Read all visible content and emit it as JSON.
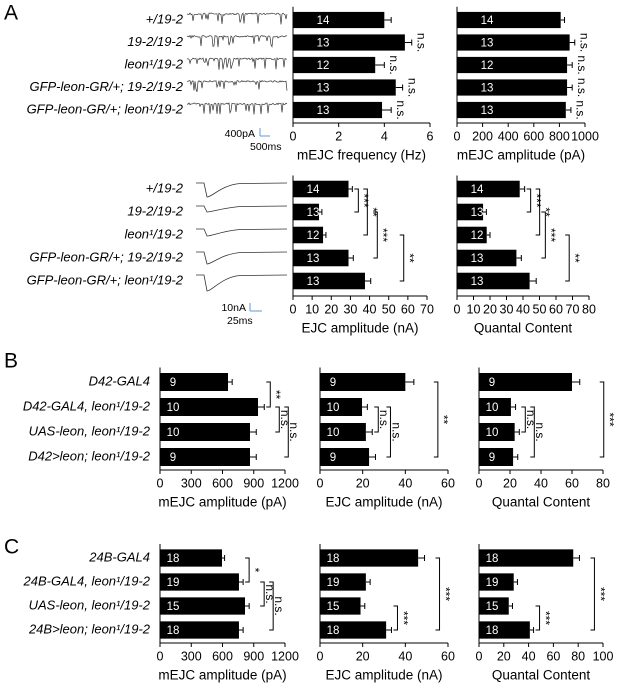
{
  "chart_data": [
    {
      "type": "bar",
      "orientation": "horizontal",
      "panel": "A",
      "categories": [
        "+/19-2",
        "19-2/19-2",
        "leon¹/19-2",
        "GFP-leon-GR/+; 19-2/19-2",
        "GFP-leon-GR/+; leon¹/19-2"
      ],
      "xlabel": "mEJC frequency (Hz)",
      "xlim": [
        0,
        6
      ],
      "xticks": [
        0,
        2,
        4,
        6
      ],
      "values": [
        4.0,
        4.9,
        3.6,
        4.5,
        3.9
      ],
      "errors": [
        0.3,
        0.3,
        0.4,
        0.3,
        0.4
      ],
      "sample_sizes": [
        14,
        13,
        12,
        13,
        13
      ],
      "annotations": [
        {
          "label": "n.s.",
          "rows": [
            1
          ]
        },
        {
          "label": "n.s.",
          "rows": [
            2
          ]
        },
        {
          "label": "n.s.",
          "rows": [
            3
          ]
        },
        {
          "label": "n.s.",
          "rows": [
            4
          ]
        }
      ]
    },
    {
      "type": "bar",
      "orientation": "horizontal",
      "xlabel": "mEJC amplitude (pA)",
      "xlim": [
        0,
        1000
      ],
      "xticks": [
        0,
        200,
        400,
        600,
        800,
        1000
      ],
      "values": [
        810,
        880,
        860,
        860,
        850
      ],
      "errors": [
        30,
        40,
        40,
        40,
        40
      ],
      "sample_sizes": [
        14,
        13,
        12,
        13,
        13
      ],
      "annotations": [
        {
          "label": "n.s.",
          "rows": [
            1
          ]
        },
        {
          "label": "n.s.",
          "rows": [
            2
          ]
        },
        {
          "label": "n.s.",
          "rows": [
            3
          ]
        },
        {
          "label": "n.s.",
          "rows": [
            4
          ]
        }
      ]
    },
    {
      "type": "bar",
      "orientation": "horizontal",
      "categories": [
        "+/19-2",
        "19-2/19-2",
        "leon¹/19-2",
        "GFP-leon-GR/+; 19-2/19-2",
        "GFP-leon-GR/+; leon¹/19-2"
      ],
      "xlabel": "EJC amplitude (nA)",
      "xlim": [
        0,
        70
      ],
      "xticks": [
        0,
        10,
        20,
        30,
        40,
        50,
        60,
        70
      ],
      "values": [
        29,
        13.6,
        15.7,
        29,
        37.6
      ],
      "errors": [
        2,
        1.5,
        1.5,
        2.5,
        3
      ],
      "sample_sizes": [
        14,
        13,
        12,
        13,
        13
      ],
      "annotations": [
        {
          "label": "***",
          "rows": [
            0,
            1
          ]
        },
        {
          "label": "**",
          "rows": [
            0,
            2
          ]
        },
        {
          "label": "***",
          "rows": [
            1,
            3
          ]
        },
        {
          "label": "**",
          "rows": [
            2,
            4
          ]
        }
      ]
    },
    {
      "type": "bar",
      "orientation": "horizontal",
      "xlabel": "Quantal Content",
      "xlim": [
        0,
        80
      ],
      "xticks": [
        0,
        10,
        20,
        30,
        40,
        50,
        60,
        70,
        80
      ],
      "values": [
        38,
        15.8,
        18,
        36,
        44
      ],
      "errors": [
        3,
        2,
        2,
        3,
        4
      ],
      "sample_sizes": [
        14,
        13,
        12,
        13,
        13
      ],
      "annotations": [
        {
          "label": "***",
          "rows": [
            0,
            1
          ]
        },
        {
          "label": "**",
          "rows": [
            0,
            2
          ]
        },
        {
          "label": "***",
          "rows": [
            1,
            3
          ]
        },
        {
          "label": "**",
          "rows": [
            2,
            4
          ]
        }
      ]
    },
    {
      "type": "bar",
      "orientation": "horizontal",
      "panel": "B",
      "categories": [
        "D42-GAL4",
        "D42-GAL4, leon¹/19-2",
        "UAS-leon, leon¹/19-2",
        "D42>leon; leon¹/19-2"
      ],
      "xlabel": "mEJC amplitude (pA)",
      "xlim": [
        0,
        1200
      ],
      "xticks": [
        0,
        300,
        600,
        900,
        1200
      ],
      "values": [
        653,
        941,
        864,
        864
      ],
      "errors": [
        40,
        60,
        60,
        60
      ],
      "sample_sizes": [
        9,
        10,
        10,
        9
      ],
      "annotations": [
        {
          "label": "**",
          "rows": [
            0,
            1
          ]
        },
        {
          "label": "n.s.",
          "rows": [
            1,
            2
          ]
        },
        {
          "label": "n.s.",
          "rows": [
            1,
            3
          ]
        }
      ]
    },
    {
      "type": "bar",
      "orientation": "horizontal",
      "xlabel": "EJC amplitude (nA)",
      "xlim": [
        0,
        60
      ],
      "xticks": [
        0,
        20,
        40,
        60
      ],
      "values": [
        40,
        19.7,
        21.5,
        23
      ],
      "errors": [
        4,
        2.5,
        3,
        3
      ],
      "sample_sizes": [
        9,
        10,
        10,
        9
      ],
      "annotations": [
        {
          "label": "n.s.",
          "rows": [
            1,
            2
          ]
        },
        {
          "label": "n.s.",
          "rows": [
            1,
            3
          ]
        },
        {
          "label": "**",
          "rows": [
            0,
            3
          ]
        }
      ]
    },
    {
      "type": "bar",
      "orientation": "horizontal",
      "xlabel": "Quantal Content",
      "xlim": [
        0,
        80
      ],
      "xticks": [
        0,
        20,
        40,
        60,
        80
      ],
      "values": [
        60,
        20.6,
        23,
        22
      ],
      "errors": [
        5,
        3,
        3,
        3
      ],
      "sample_sizes": [
        9,
        10,
        10,
        9
      ],
      "annotations": [
        {
          "label": "n.s.",
          "rows": [
            1,
            2
          ]
        },
        {
          "label": "n.s.",
          "rows": [
            1,
            3
          ]
        },
        {
          "label": "***",
          "rows": [
            0,
            3
          ]
        }
      ]
    },
    {
      "type": "bar",
      "orientation": "horizontal",
      "panel": "C",
      "categories": [
        "24B-GAL4",
        "24B-GAL4, leon¹/19-2",
        "UAS-leon, leon¹/19-2",
        "24B>leon; leon¹/19-2"
      ],
      "xlabel": "mEJC amplitude (pA)",
      "xlim": [
        0,
        1200
      ],
      "xticks": [
        0,
        300,
        600,
        900,
        1200
      ],
      "values": [
        595,
        758,
        816,
        758
      ],
      "errors": [
        25,
        40,
        40,
        40
      ],
      "sample_sizes": [
        18,
        19,
        15,
        18
      ],
      "annotations": [
        {
          "label": "*",
          "rows": [
            0,
            1
          ]
        },
        {
          "label": "n.s.",
          "rows": [
            1,
            2
          ]
        },
        {
          "label": "n.s.",
          "rows": [
            1,
            3
          ]
        }
      ]
    },
    {
      "type": "bar",
      "orientation": "horizontal",
      "xlabel": "EJC amplitude (nA)",
      "xlim": [
        0,
        60
      ],
      "xticks": [
        0,
        20,
        40,
        60
      ],
      "values": [
        46,
        21.5,
        19,
        31
      ],
      "errors": [
        3,
        2,
        2,
        2.5
      ],
      "sample_sizes": [
        18,
        19,
        15,
        18
      ],
      "annotations": [
        {
          "label": "***",
          "rows": [
            2,
            3
          ]
        },
        {
          "label": "***",
          "rows": [
            0,
            3
          ]
        }
      ]
    },
    {
      "type": "bar",
      "orientation": "horizontal",
      "xlabel": "Quantal Content",
      "xlim": [
        0,
        100
      ],
      "xticks": [
        0,
        20,
        40,
        60,
        80,
        100
      ],
      "values": [
        76,
        28,
        24,
        41
      ],
      "errors": [
        5,
        3,
        3,
        3
      ],
      "sample_sizes": [
        18,
        19,
        15,
        18
      ],
      "annotations": [
        {
          "label": "***",
          "rows": [
            2,
            3
          ]
        },
        {
          "label": "***",
          "rows": [
            0,
            3
          ]
        }
      ]
    }
  ],
  "scale_bars": [
    "400pA",
    "500ms",
    "10nA",
    "25ms"
  ]
}
